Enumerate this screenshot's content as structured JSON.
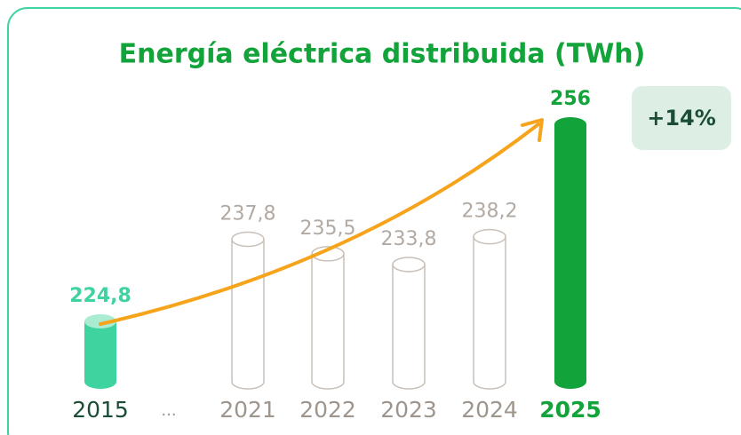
{
  "chart_data": {
    "type": "bar",
    "title": "Energía eléctrica distribuida (TWh)",
    "categories": [
      "2015",
      "...",
      "2021",
      "2022",
      "2023",
      "2024",
      "2025"
    ],
    "values": [
      224.8,
      null,
      237.8,
      235.5,
      233.8,
      238.2,
      256
    ],
    "value_labels": [
      "224,8",
      null,
      "237,8",
      "235,5",
      "233,8",
      "238,2",
      "256"
    ],
    "colors": [
      "#3ed39f",
      null,
      "#ffffff",
      "#ffffff",
      "#ffffff",
      "#ffffff",
      "#12a33a"
    ],
    "annotation": "+14%"
  }
}
